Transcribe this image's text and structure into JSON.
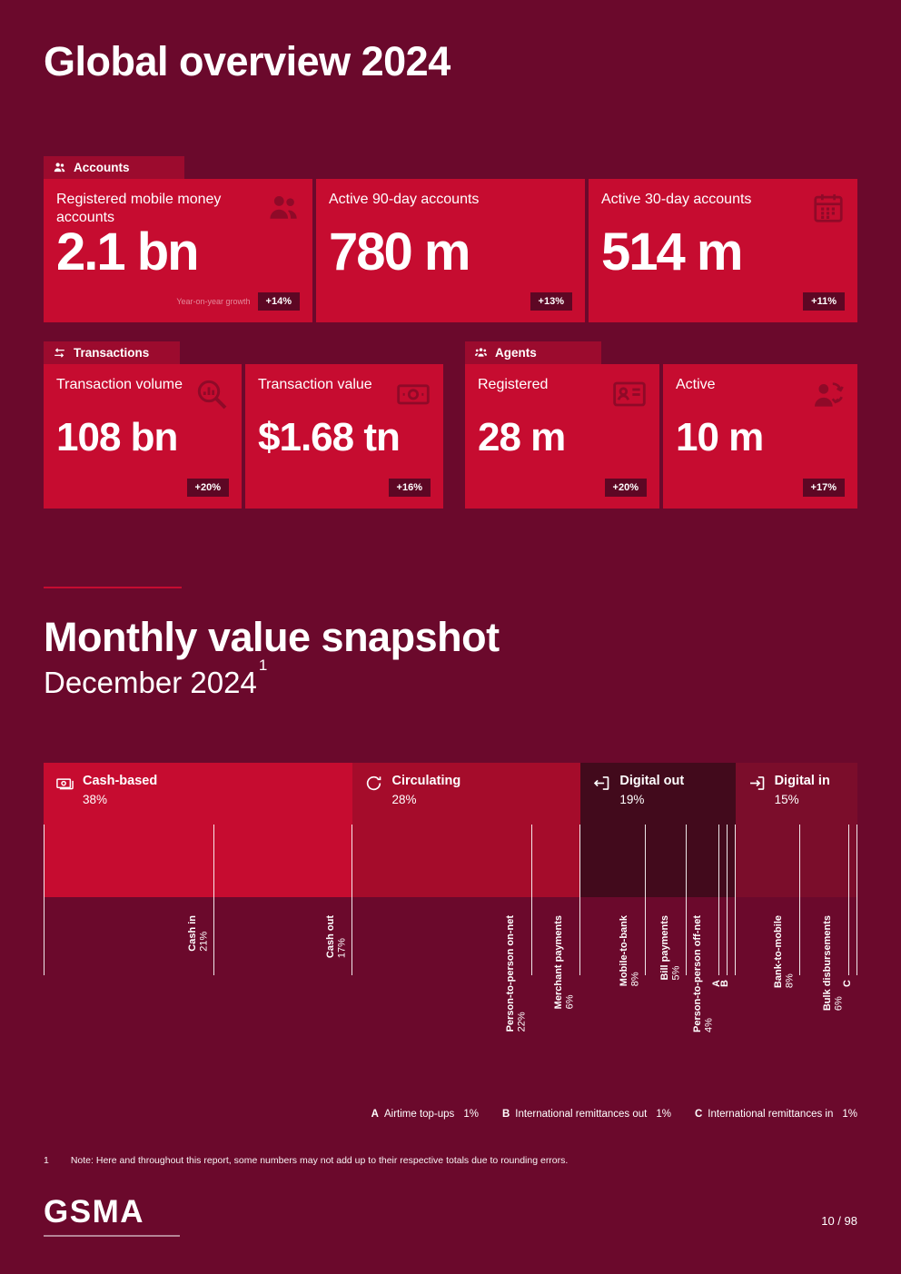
{
  "page": {
    "title": "Global overview 2024",
    "footer_brand": "GSMA",
    "page_number": "10 / 98",
    "footnote_marker": "1",
    "footnote_text": "Note: Here and throughout this report, some numbers may not add up to their respective totals due to rounding errors."
  },
  "colors": {
    "page_bg": "#6B092C",
    "card_red": "#C60C30",
    "tab_red": "#9C0B2E",
    "badge_bg": "#5D0724",
    "icon_red": "#8F0A28",
    "accent_divider": "#C60C30"
  },
  "accounts": {
    "tab_label": "Accounts",
    "cards": [
      {
        "title": "Registered mobile money accounts",
        "value": "2.1 bn",
        "growth_label": "Year-on-year growth",
        "badge": "+14%"
      },
      {
        "title": "Active 90-day accounts",
        "value": "780 m",
        "badge": "+13%"
      },
      {
        "title": "Active 30-day accounts",
        "value": "514 m",
        "badge": "+11%"
      }
    ]
  },
  "transactions": {
    "tab_label": "Transactions",
    "cards": [
      {
        "title": "Transaction volume",
        "value": "108 bn",
        "badge": "+20%"
      },
      {
        "title": "Transaction value",
        "value": "$1.68 tn",
        "badge": "+16%"
      }
    ]
  },
  "agents": {
    "tab_label": "Agents",
    "cards": [
      {
        "title": "Registered",
        "value": "28 m",
        "badge": "+20%"
      },
      {
        "title": "Active",
        "value": "10 m",
        "badge": "+17%"
      }
    ]
  },
  "snapshot": {
    "title": "Monthly value snapshot",
    "subtitle": "December 2024",
    "footnote_ref": "1"
  },
  "chart_data": {
    "type": "bar",
    "title": "Monthly value snapshot",
    "subtitle": "December 2024",
    "orientation": "horizontal-stacked",
    "value_unit": "%",
    "xlim": [
      0,
      100
    ],
    "segments": [
      {
        "name": "Cash-based",
        "value": 38,
        "color": "#C60C30",
        "icon": "cash-icon",
        "children": [
          {
            "name": "Cash in",
            "value": 21
          },
          {
            "name": "Cash out",
            "value": 17
          }
        ]
      },
      {
        "name": "Circulating",
        "value": 28,
        "color": "#A50C2B",
        "icon": "refresh-icon",
        "children": [
          {
            "name": "Person-to-person on-net",
            "value": 22
          },
          {
            "name": "Merchant payments",
            "value": 6
          }
        ]
      },
      {
        "name": "Digital out",
        "value": 19,
        "color": "#420A1C",
        "icon": "arrow-out-icon",
        "children": [
          {
            "name": "Mobile-to-bank",
            "value": 8
          },
          {
            "name": "Bill payments",
            "value": 5
          },
          {
            "name": "Person-to-person off-net",
            "value": 4
          },
          {
            "name": "A",
            "value": 1
          },
          {
            "name": "B",
            "value": 1
          }
        ]
      },
      {
        "name": "Digital in",
        "value": 15,
        "color": "#7B0D2B",
        "icon": "arrow-in-icon",
        "children": [
          {
            "name": "Bank-to-mobile",
            "value": 8
          },
          {
            "name": "Bulk disbursements",
            "value": 6
          },
          {
            "name": "C",
            "value": 1
          }
        ]
      }
    ],
    "legend": [
      {
        "key": "A",
        "label": "Airtime top-ups",
        "value": "1%"
      },
      {
        "key": "B",
        "label": "International remittances out",
        "value": "1%"
      },
      {
        "key": "C",
        "label": "International remittances in",
        "value": "1%"
      }
    ],
    "legend_position": "bottom-right"
  }
}
